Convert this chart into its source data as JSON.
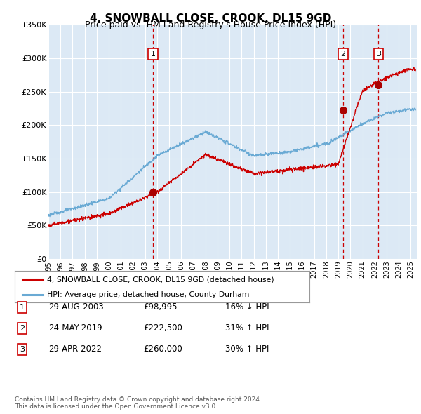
{
  "title": "4, SNOWBALL CLOSE, CROOK, DL15 9GD",
  "subtitle": "Price paid vs. HM Land Registry's House Price Index (HPI)",
  "x_start": 1995.0,
  "x_end": 2025.5,
  "y_min": 0,
  "y_max": 350000,
  "y_ticks": [
    0,
    50000,
    100000,
    150000,
    200000,
    250000,
    300000,
    350000
  ],
  "y_tick_labels": [
    "£0",
    "£50K",
    "£100K",
    "£150K",
    "£200K",
    "£250K",
    "£300K",
    "£350K"
  ],
  "bg_color": "#dce9f5",
  "grid_color": "#ffffff",
  "red_line_color": "#cc0000",
  "blue_line_color": "#6aaad4",
  "sale_marker_color": "#aa0000",
  "vline_color": "#cc0000",
  "box_color": "#cc0000",
  "sales": [
    {
      "date_num": 2003.66,
      "price": 98995,
      "label": "1"
    },
    {
      "date_num": 2019.39,
      "price": 222500,
      "label": "2"
    },
    {
      "date_num": 2022.33,
      "price": 260000,
      "label": "3"
    }
  ],
  "legend_items": [
    {
      "label": "4, SNOWBALL CLOSE, CROOK, DL15 9GD (detached house)",
      "color": "#cc0000"
    },
    {
      "label": "HPI: Average price, detached house, County Durham",
      "color": "#6aaad4"
    }
  ],
  "table_rows": [
    {
      "num": "1",
      "date": "29-AUG-2003",
      "price": "£98,995",
      "change": "16% ↓ HPI"
    },
    {
      "num": "2",
      "date": "24-MAY-2019",
      "price": "£222,500",
      "change": "31% ↑ HPI"
    },
    {
      "num": "3",
      "date": "29-APR-2022",
      "price": "£260,000",
      "change": "30% ↑ HPI"
    }
  ],
  "footnote": "Contains HM Land Registry data © Crown copyright and database right 2024.\nThis data is licensed under the Open Government Licence v3.0.",
  "x_tick_years": [
    1995,
    1996,
    1997,
    1998,
    1999,
    2000,
    2001,
    2002,
    2003,
    2004,
    2005,
    2006,
    2007,
    2008,
    2009,
    2010,
    2011,
    2012,
    2013,
    2014,
    2015,
    2016,
    2017,
    2018,
    2019,
    2020,
    2021,
    2022,
    2023,
    2024,
    2025
  ]
}
